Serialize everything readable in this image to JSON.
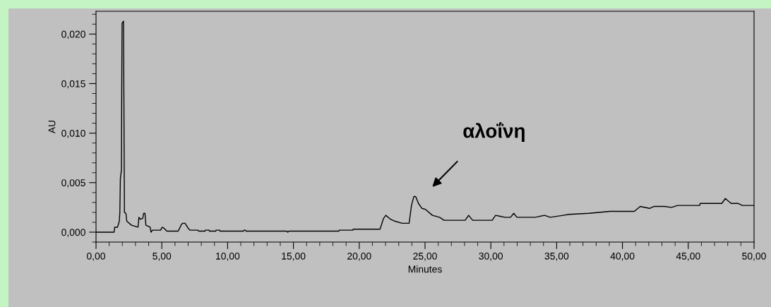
{
  "chart_data": {
    "type": "line",
    "xlabel": "Minutes",
    "ylabel": "AU",
    "x": [
      0,
      0.83,
      1.37,
      1.42,
      1.63,
      1.77,
      1.81,
      1.85,
      1.93,
      1.95,
      1.98,
      2.09,
      2.16,
      2.27,
      2.34,
      2.7,
      3.19,
      3.26,
      3.37,
      3.55,
      3.62,
      3.72,
      3.79,
      3.97,
      4.11,
      4.18,
      4.29,
      4.91,
      5.02,
      5.16,
      5.38,
      6.24,
      6.5,
      6.6,
      6.77,
      6.95,
      7.13,
      7.75,
      7.8,
      8.28,
      8.3,
      8.6,
      8.62,
      9.1,
      9.12,
      9.4,
      9.42,
      11.2,
      11.25,
      11.35,
      11.4,
      14.5,
      14.57,
      14.65,
      18.45,
      18.47,
      19.52,
      19.54,
      21.58,
      21.85,
      22.02,
      22.38,
      22.73,
      23.26,
      23.79,
      23.97,
      24.15,
      24.29,
      24.5,
      24.77,
      25.03,
      25.56,
      26.1,
      26.45,
      28.05,
      28.31,
      28.62,
      30.1,
      30.36,
      30.71,
      31.06,
      31.5,
      31.74,
      31.98,
      33.37,
      34.08,
      34.52,
      35.49,
      35.94,
      37.45,
      39.04,
      39.93,
      40.9,
      41.35,
      42.06,
      42.41,
      43.21,
      43.74,
      44.18,
      45.87,
      45.9,
      47.55,
      47.82,
      48.26,
      48.8,
      49.11,
      50
    ],
    "series": [
      {
        "color": "#000000",
        "values": [
          0,
          0,
          0,
          0.0005,
          0.0005,
          0.0011,
          0.002,
          0.0054,
          0.0063,
          0.013,
          0.0211,
          0.0213,
          0.002,
          0.0019,
          0.0011,
          0.0007,
          0.0005,
          0.0015,
          0.0013,
          0.0014,
          0.0019,
          0.0019,
          0.0007,
          0.0006,
          0.0005,
          0,
          0.0002,
          0.0002,
          0.0005,
          0.0004,
          0.0001,
          0.0001,
          0.0008,
          0.0009,
          0.0009,
          0.0005,
          0.0002,
          0.0002,
          0.0001,
          0.0001,
          0.0002,
          0.0002,
          0.0001,
          0.0001,
          0.0002,
          0.0002,
          0.0001,
          0.0001,
          0.0002,
          0.0002,
          0.0001,
          0.0001,
          0,
          0.0001,
          0.0001,
          0.0002,
          0.0002,
          0.0003,
          0.0003,
          0.0014,
          0.0017,
          0.0013,
          0.0011,
          0.0009,
          0.0009,
          0.0027,
          0.0036,
          0.0036,
          0.0029,
          0.0024,
          0.0023,
          0.0017,
          0.0015,
          0.0012,
          0.0012,
          0.0017,
          0.0012,
          0.0012,
          0.0017,
          0.0016,
          0.0015,
          0.0015,
          0.0019,
          0.0015,
          0.0015,
          0.0017,
          0.0015,
          0.0017,
          0.0018,
          0.0019,
          0.0021,
          0.0021,
          0.0021,
          0.0026,
          0.0024,
          0.0026,
          0.0026,
          0.0025,
          0.0027,
          0.0027,
          0.0029,
          0.0029,
          0.0034,
          0.0029,
          0.0029,
          0.0027,
          0.0027
        ]
      }
    ],
    "xlim": [
      0,
      50
    ],
    "xticks": [
      {
        "value": 0,
        "label": "0,00"
      },
      {
        "value": 1,
        "label": null
      },
      {
        "value": 2,
        "label": null
      },
      {
        "value": 3,
        "label": null
      },
      {
        "value": 4,
        "label": null
      },
      {
        "value": 5,
        "label": "5,00"
      },
      {
        "value": 6,
        "label": null
      },
      {
        "value": 7,
        "label": null
      },
      {
        "value": 8,
        "label": null
      },
      {
        "value": 9,
        "label": null
      },
      {
        "value": 10,
        "label": "10,00"
      },
      {
        "value": 11,
        "label": null
      },
      {
        "value": 12,
        "label": null
      },
      {
        "value": 13,
        "label": null
      },
      {
        "value": 14,
        "label": null
      },
      {
        "value": 15,
        "label": "15,00"
      },
      {
        "value": 16,
        "label": null
      },
      {
        "value": 17,
        "label": null
      },
      {
        "value": 18,
        "label": null
      },
      {
        "value": 19,
        "label": null
      },
      {
        "value": 20,
        "label": "20,00"
      },
      {
        "value": 21,
        "label": null
      },
      {
        "value": 22,
        "label": null
      },
      {
        "value": 23,
        "label": null
      },
      {
        "value": 24,
        "label": null
      },
      {
        "value": 25,
        "label": "25,00"
      },
      {
        "value": 26,
        "label": null
      },
      {
        "value": 27,
        "label": null
      },
      {
        "value": 28,
        "label": null
      },
      {
        "value": 29,
        "label": null
      },
      {
        "value": 30,
        "label": "30,00"
      },
      {
        "value": 31,
        "label": null
      },
      {
        "value": 32,
        "label": null
      },
      {
        "value": 33,
        "label": null
      },
      {
        "value": 34,
        "label": null
      },
      {
        "value": 35,
        "label": "35,00"
      },
      {
        "value": 36,
        "label": null
      },
      {
        "value": 37,
        "label": null
      },
      {
        "value": 38,
        "label": null
      },
      {
        "value": 39,
        "label": null
      },
      {
        "value": 40,
        "label": "40,00"
      },
      {
        "value": 41,
        "label": null
      },
      {
        "value": 42,
        "label": null
      },
      {
        "value": 43,
        "label": null
      },
      {
        "value": 44,
        "label": null
      },
      {
        "value": 45,
        "label": "45,00"
      },
      {
        "value": 46,
        "label": null
      },
      {
        "value": 47,
        "label": null
      },
      {
        "value": 48,
        "label": null
      },
      {
        "value": 49,
        "label": null
      },
      {
        "value": 50,
        "label": "50,00"
      }
    ],
    "ylim": [
      -0.001,
      0.0223
    ],
    "yticks": [
      {
        "value": -0.001,
        "label": null
      },
      {
        "value": 0,
        "label": "0,000"
      },
      {
        "value": 0.001,
        "label": null
      },
      {
        "value": 0.002,
        "label": null
      },
      {
        "value": 0.003,
        "label": null
      },
      {
        "value": 0.004,
        "label": null
      },
      {
        "value": 0.005,
        "label": "0,005"
      },
      {
        "value": 0.006,
        "label": null
      },
      {
        "value": 0.007,
        "label": null
      },
      {
        "value": 0.008,
        "label": null
      },
      {
        "value": 0.009,
        "label": null
      },
      {
        "value": 0.01,
        "label": "0,010"
      },
      {
        "value": 0.011,
        "label": null
      },
      {
        "value": 0.012,
        "label": null
      },
      {
        "value": 0.013,
        "label": null
      },
      {
        "value": 0.014,
        "label": null
      },
      {
        "value": 0.015,
        "label": "0,015"
      },
      {
        "value": 0.016,
        "label": null
      },
      {
        "value": 0.017,
        "label": null
      },
      {
        "value": 0.018,
        "label": null
      },
      {
        "value": 0.019,
        "label": null
      },
      {
        "value": 0.02,
        "label": "0,020"
      },
      {
        "value": 0.021,
        "label": null
      },
      {
        "value": 0.022,
        "label": null
      }
    ],
    "annotations": [
      "αλοΐνη"
    ],
    "grid": false,
    "marker": "none",
    "line_style": "solid"
  }
}
